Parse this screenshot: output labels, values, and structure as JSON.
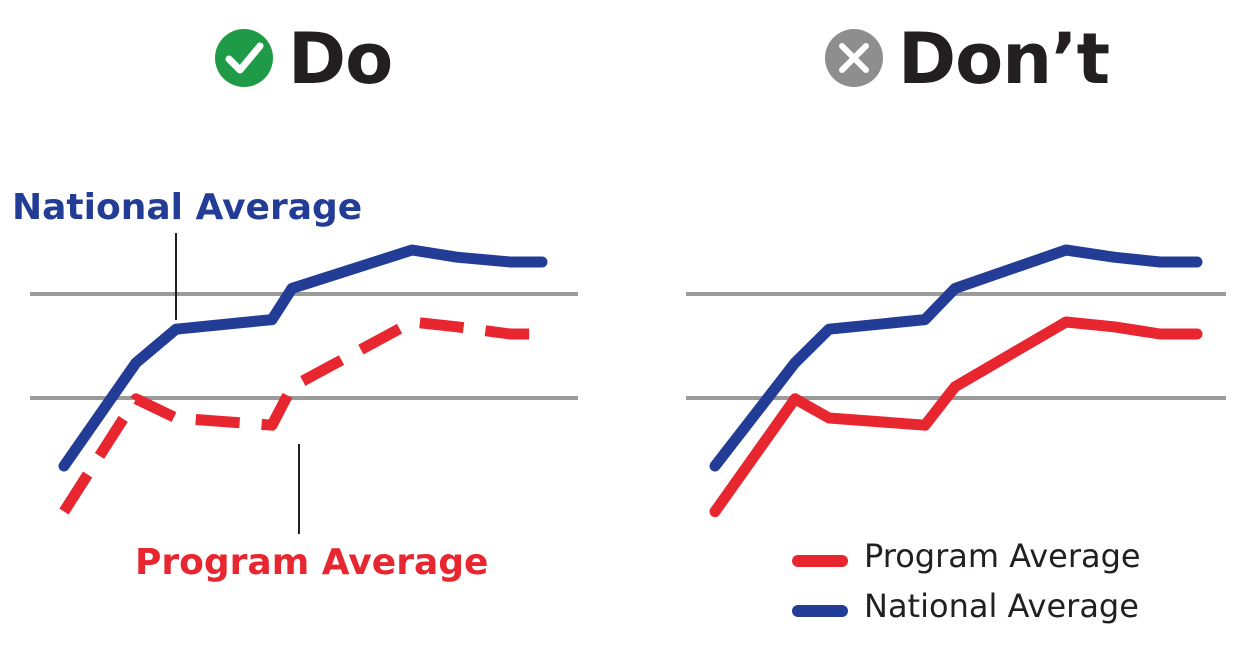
{
  "colors": {
    "national": "#233d96",
    "program": "#e8262f",
    "gridline": "#9b9b9b",
    "do_badge": "#1f9a46",
    "dont_badge": "#8e8e8e",
    "title": "#231f20"
  },
  "icons": {
    "do": "check-circle-icon",
    "dont": "x-circle-icon"
  },
  "panels": [
    {
      "title": "Do",
      "labeling": "direct-labels",
      "program_line_style": "dashed"
    },
    {
      "title": "Don’t",
      "labeling": "legend",
      "program_line_style": "solid"
    }
  ],
  "chart_data": [
    {
      "type": "line",
      "title": "",
      "xlabel": "",
      "ylabel": "",
      "x": [
        0,
        1,
        2,
        3,
        4,
        5,
        6,
        7,
        8
      ],
      "ylim": [
        0,
        1
      ],
      "grid_values": [
        0.45,
        0.8
      ],
      "series": [
        {
          "name": "National Average",
          "color": "#233d96",
          "values": [
            0.15,
            0.58,
            0.72,
            0.76,
            0.89,
            1.05,
            1.02,
            1.0,
            1.0
          ]
        },
        {
          "name": "Program Average",
          "color": "#e8262f",
          "values": [
            -0.04,
            0.43,
            0.35,
            0.32,
            0.48,
            0.75,
            0.73,
            0.7,
            0.7
          ]
        }
      ],
      "annotations": [
        {
          "text": "National Average",
          "series": "National Average"
        },
        {
          "text": "Program Average",
          "series": "Program Average"
        }
      ]
    },
    {
      "type": "line",
      "title": "",
      "xlabel": "",
      "ylabel": "",
      "x": [
        0,
        1,
        2,
        3,
        4,
        5,
        6,
        7,
        8
      ],
      "ylim": [
        0,
        1
      ],
      "grid_values": [
        0.45,
        0.8
      ],
      "legend": {
        "position": "bottom-right",
        "entries": [
          "Program Average",
          "National Average"
        ]
      },
      "series": [
        {
          "name": "National Average",
          "color": "#233d96",
          "values": [
            0.15,
            0.58,
            0.72,
            0.76,
            0.89,
            1.05,
            1.02,
            1.0,
            1.0
          ]
        },
        {
          "name": "Program Average",
          "color": "#e8262f",
          "values": [
            -0.04,
            0.43,
            0.35,
            0.32,
            0.48,
            0.75,
            0.73,
            0.7,
            0.7
          ]
        }
      ]
    }
  ]
}
